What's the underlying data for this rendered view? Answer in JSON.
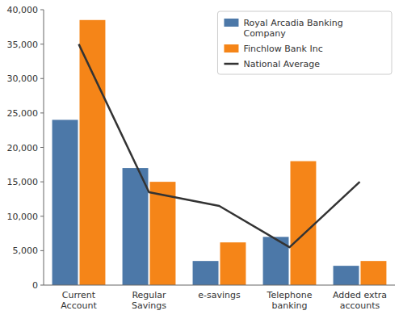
{
  "chart_data": {
    "type": "bar",
    "categories": [
      "Current\nAccount",
      "Regular\nSavings",
      "e-savings",
      "Telephone\nbanking",
      "Added extra\naccounts"
    ],
    "series": [
      {
        "name": "Royal Arcadia Banking\nCompany",
        "type": "bar",
        "values": [
          24000,
          17000,
          3500,
          7000,
          2800
        ]
      },
      {
        "name": "Finchlow Bank Inc",
        "type": "bar",
        "values": [
          38500,
          15000,
          6200,
          18000,
          3500
        ]
      },
      {
        "name": "National Average",
        "type": "line",
        "values": [
          35000,
          13500,
          11500,
          5500,
          15000
        ]
      }
    ],
    "ylim": [
      0,
      40000
    ],
    "yticks": [
      0,
      {
        "value": 5000,
        "label": "5,000"
      },
      {
        "value": 10000,
        "label": "10,000"
      },
      {
        "value": 15000,
        "label": "15,000"
      },
      {
        "value": 20000,
        "label": "20,000"
      },
      {
        "value": 25000,
        "label": "25,000"
      },
      {
        "value": 30000,
        "label": "30,000"
      },
      {
        "value": 35000,
        "label": "35,000"
      },
      {
        "value": 40000,
        "label": "40,000"
      }
    ],
    "grid": false,
    "legend": "upper right"
  }
}
